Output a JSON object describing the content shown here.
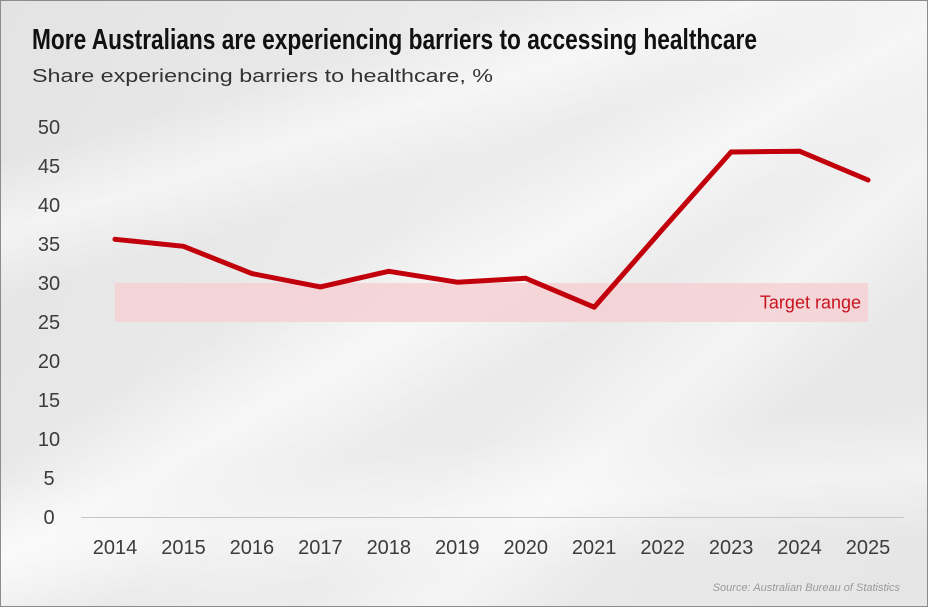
{
  "chart_data": {
    "type": "line",
    "title": "More Australians are experiencing barriers to accessing healthcare",
    "subtitle": "Share experiencing barriers to healthcare, %",
    "categories": [
      "2014",
      "2015",
      "2016",
      "2017",
      "2018",
      "2019",
      "2020",
      "2021",
      "2022",
      "2023",
      "2024",
      "2025"
    ],
    "series": [
      {
        "values": [
          35.6,
          34.7,
          31.2,
          29.5,
          31.5,
          30.1,
          30.6,
          26.9,
          36.9,
          46.8,
          46.9,
          43.2
        ]
      }
    ],
    "ylim": [
      0,
      50
    ],
    "yticks": [
      50,
      45,
      40,
      35,
      30,
      25,
      20,
      15,
      10,
      5,
      0
    ],
    "grid": false,
    "bands": [
      {
        "label": "Target range",
        "y_from": 25,
        "y_to": 30,
        "x_from": "2014",
        "x_to": "2025"
      }
    ],
    "source": "Source: Australian Bureau of Statistics"
  },
  "colors": {
    "line": "#c1000b",
    "band": "#f5d0d3",
    "band_label": "#c8141f",
    "axis": "#c6c6c6"
  }
}
